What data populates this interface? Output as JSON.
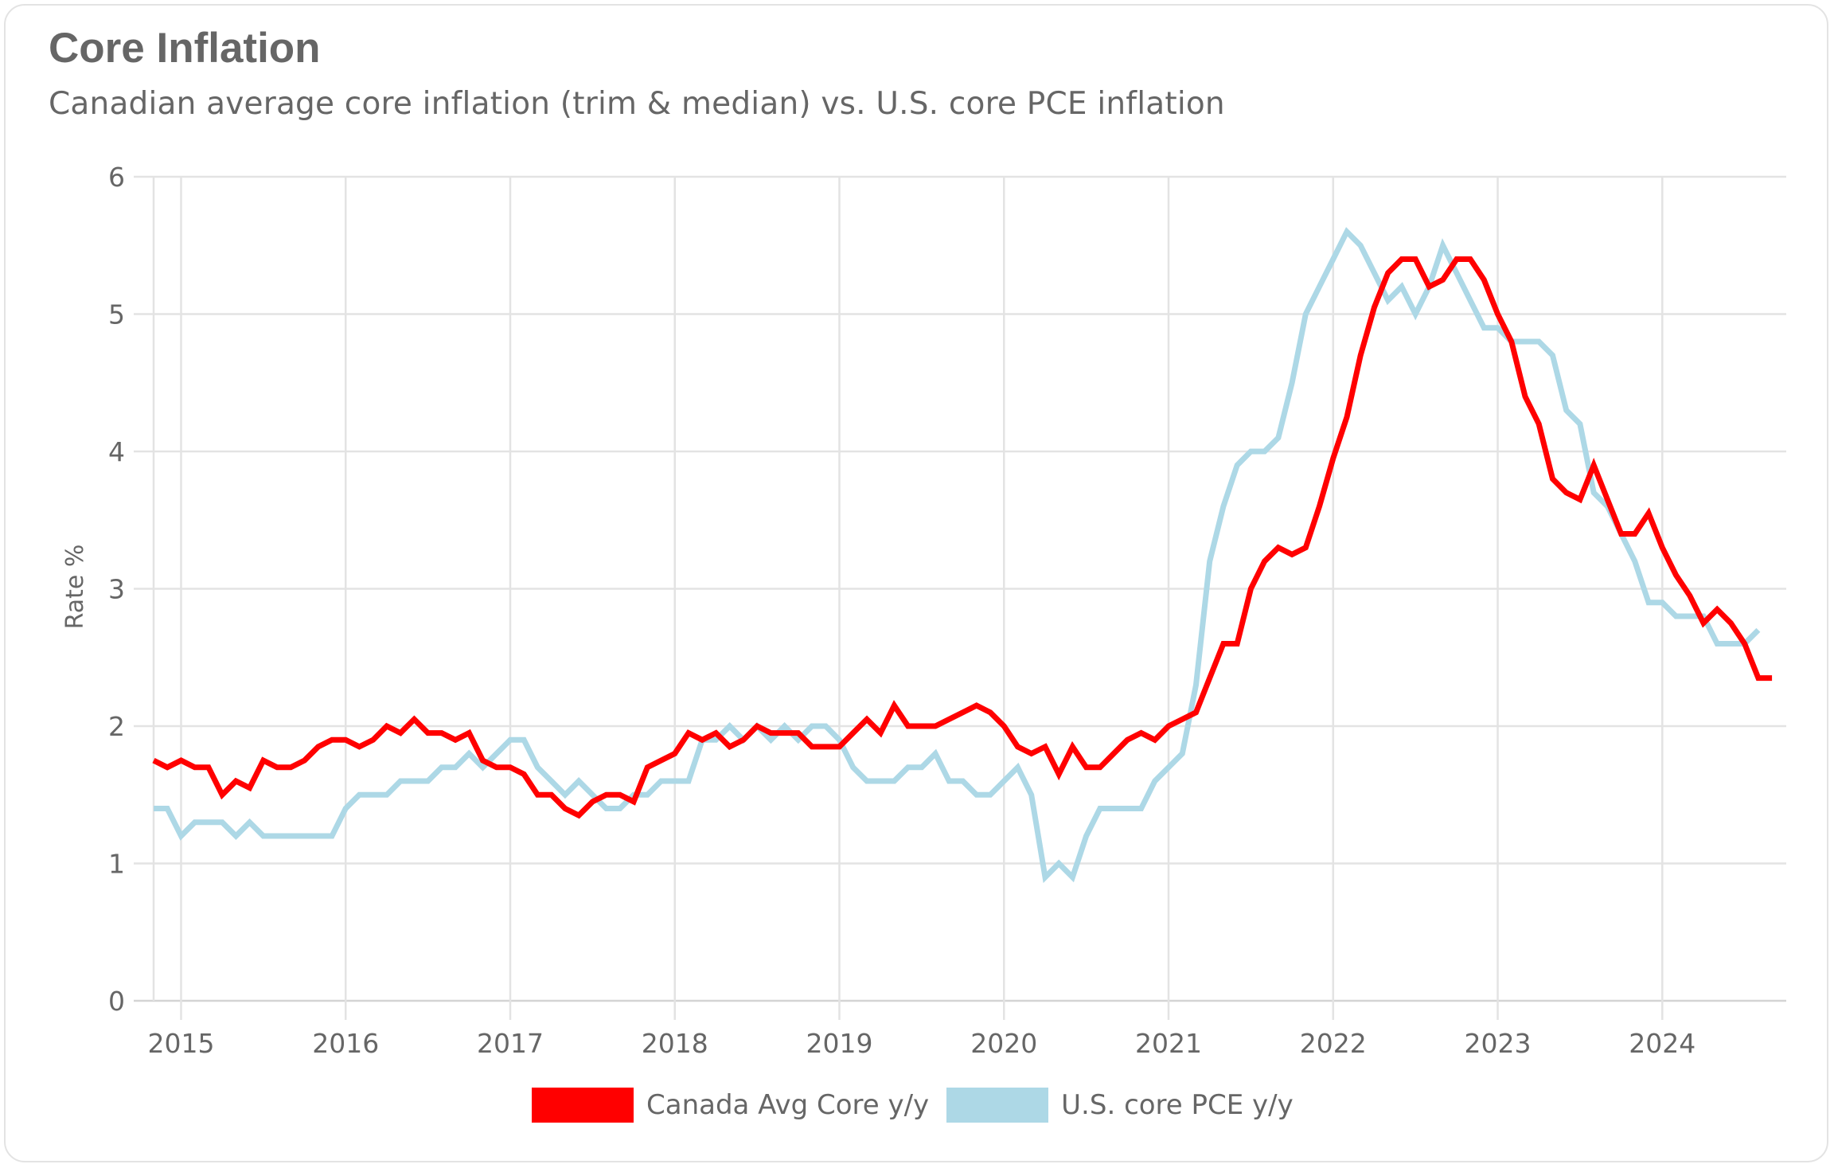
{
  "title": "Core Inflation",
  "subtitle": "Canadian average core inflation (trim & median) vs. U.S. core PCE inflation",
  "chart_data": {
    "type": "line",
    "title": "Core Inflation",
    "subtitle": "Canadian average core inflation (trim & median) vs. U.S. core PCE inflation",
    "xlabel": "",
    "ylabel": "Rate %",
    "ylim": [
      0,
      6
    ],
    "yticks": [
      "0",
      "1",
      "2",
      "3",
      "4",
      "5",
      "6"
    ],
    "xticks": [
      "2015",
      "2016",
      "2017",
      "2018",
      "2019",
      "2020",
      "2021",
      "2022",
      "2023",
      "2024"
    ],
    "x_start": "2014-11",
    "x_frequency": "monthly",
    "grid": true,
    "legend_position": "bottom",
    "series": [
      {
        "name": "Canada Avg Core y/y",
        "color": "#ff0000",
        "start": "2014-11",
        "values": [
          1.75,
          1.7,
          1.75,
          1.7,
          1.7,
          1.5,
          1.6,
          1.55,
          1.75,
          1.7,
          1.7,
          1.75,
          1.85,
          1.9,
          1.9,
          1.85,
          1.9,
          2.0,
          1.95,
          2.05,
          1.95,
          1.95,
          1.9,
          1.95,
          1.75,
          1.7,
          1.7,
          1.65,
          1.5,
          1.5,
          1.4,
          1.35,
          1.45,
          1.5,
          1.5,
          1.45,
          1.7,
          1.75,
          1.8,
          1.95,
          1.9,
          1.95,
          1.85,
          1.9,
          2.0,
          1.95,
          1.95,
          1.95,
          1.85,
          1.85,
          1.85,
          1.95,
          2.05,
          1.95,
          2.15,
          2.0,
          2.0,
          2.0,
          2.05,
          2.1,
          2.15,
          2.1,
          2.0,
          1.85,
          1.8,
          1.85,
          1.65,
          1.85,
          1.7,
          1.7,
          1.8,
          1.9,
          1.95,
          1.9,
          2.0,
          2.05,
          2.1,
          2.35,
          2.6,
          2.6,
          3.0,
          3.2,
          3.3,
          3.25,
          3.3,
          3.6,
          3.95,
          4.25,
          4.7,
          5.05,
          5.3,
          5.4,
          5.4,
          5.2,
          5.25,
          5.4,
          5.4,
          5.25,
          5.0,
          4.8,
          4.4,
          4.2,
          3.8,
          3.7,
          3.65,
          3.9,
          3.65,
          3.4,
          3.4,
          3.55,
          3.3,
          3.1,
          2.95,
          2.75,
          2.85,
          2.75,
          2.6,
          2.35,
          2.35
        ]
      },
      {
        "name": "U.S. core PCE y/y",
        "color": "#add8e6",
        "start": "2014-11",
        "values": [
          1.4,
          1.4,
          1.2,
          1.3,
          1.3,
          1.3,
          1.2,
          1.3,
          1.2,
          1.2,
          1.2,
          1.2,
          1.2,
          1.2,
          1.4,
          1.5,
          1.5,
          1.5,
          1.6,
          1.6,
          1.6,
          1.7,
          1.7,
          1.8,
          1.7,
          1.8,
          1.9,
          1.9,
          1.7,
          1.6,
          1.5,
          1.6,
          1.5,
          1.4,
          1.4,
          1.5,
          1.5,
          1.6,
          1.6,
          1.6,
          1.9,
          1.9,
          2.0,
          1.9,
          2.0,
          1.9,
          2.0,
          1.9,
          2.0,
          2.0,
          1.9,
          1.7,
          1.6,
          1.6,
          1.6,
          1.7,
          1.7,
          1.8,
          1.6,
          1.6,
          1.5,
          1.5,
          1.6,
          1.7,
          1.5,
          0.9,
          1.0,
          0.9,
          1.2,
          1.4,
          1.4,
          1.4,
          1.4,
          1.6,
          1.7,
          1.8,
          2.3,
          3.2,
          3.6,
          3.9,
          4.0,
          4.0,
          4.1,
          4.5,
          5.0,
          5.2,
          5.4,
          5.6,
          5.5,
          5.3,
          5.1,
          5.2,
          5.0,
          5.2,
          5.5,
          5.3,
          5.1,
          4.9,
          4.9,
          4.8,
          4.8,
          4.8,
          4.7,
          4.3,
          4.2,
          3.7,
          3.6,
          3.4,
          3.2,
          2.9,
          2.9,
          2.8,
          2.8,
          2.8,
          2.6,
          2.6,
          2.6,
          2.7
        ]
      }
    ]
  },
  "legend": {
    "items": [
      {
        "label": "Canada Avg Core y/y",
        "color": "#ff0000"
      },
      {
        "label": "U.S. core PCE y/y",
        "color": "#add8e6"
      }
    ]
  },
  "colors": {
    "text": "#666666",
    "grid": "#e3e3e3",
    "axis": "#d4d4d4",
    "card_border": "#e3e3e3"
  }
}
